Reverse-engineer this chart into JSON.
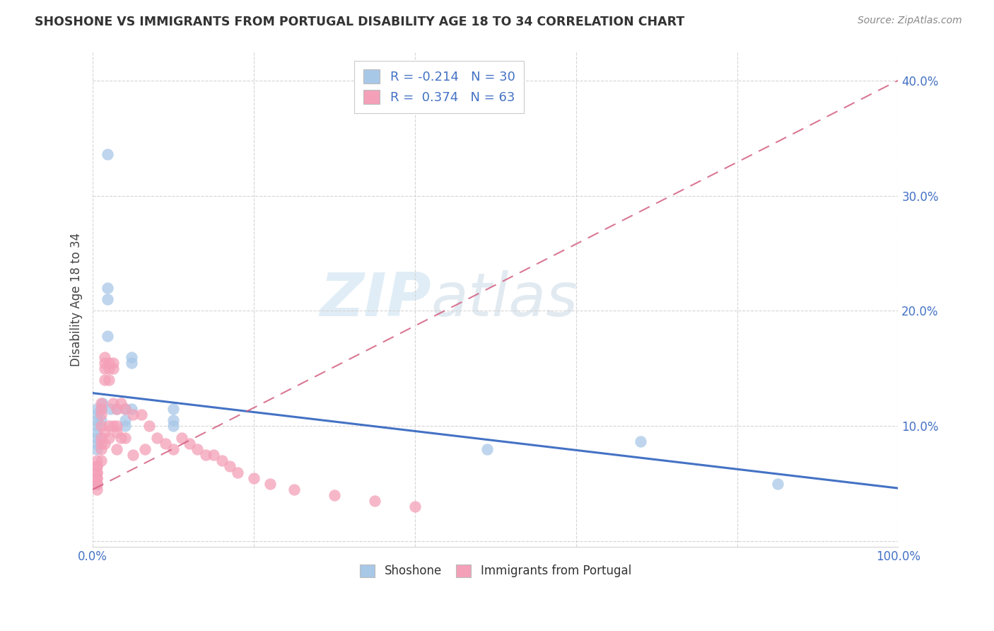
{
  "title": "SHOSHONE VS IMMIGRANTS FROM PORTUGAL DISABILITY AGE 18 TO 34 CORRELATION CHART",
  "source": "Source: ZipAtlas.com",
  "ylabel": "Disability Age 18 to 34",
  "xlim": [
    0.0,
    1.0
  ],
  "ylim": [
    -0.005,
    0.425
  ],
  "R1": -0.214,
  "N1": 30,
  "R2": 0.374,
  "N2": 63,
  "color1": "#a8c8e8",
  "color2": "#f4a0b8",
  "line_color1": "#4472c4",
  "line_color2": "#d46080",
  "legend_label1": "Shoshone",
  "legend_label2": "Immigrants from Portugal",
  "watermark_zip": "ZIP",
  "watermark_atlas": "atlas",
  "shoshone_x": [
    0.018,
    0.018,
    0.018,
    0.018,
    0.022,
    0.01,
    0.01,
    0.005,
    0.005,
    0.005,
    0.005,
    0.005,
    0.005,
    0.005,
    0.005,
    0.005,
    0.03,
    0.04,
    0.04,
    0.04,
    0.048,
    0.048,
    0.048,
    0.1,
    0.1,
    0.1,
    0.49,
    0.68,
    0.85,
    0.012
  ],
  "shoshone_y": [
    0.336,
    0.22,
    0.21,
    0.178,
    0.115,
    0.115,
    0.105,
    0.115,
    0.11,
    0.105,
    0.1,
    0.095,
    0.09,
    0.085,
    0.08,
    0.05,
    0.115,
    0.115,
    0.105,
    0.1,
    0.16,
    0.155,
    0.115,
    0.115,
    0.105,
    0.1,
    0.08,
    0.087,
    0.05,
    0.12
  ],
  "portugal_x": [
    0.005,
    0.005,
    0.005,
    0.005,
    0.005,
    0.005,
    0.005,
    0.005,
    0.005,
    0.005,
    0.01,
    0.01,
    0.01,
    0.01,
    0.01,
    0.01,
    0.01,
    0.01,
    0.015,
    0.015,
    0.015,
    0.015,
    0.015,
    0.015,
    0.02,
    0.02,
    0.02,
    0.02,
    0.02,
    0.025,
    0.025,
    0.025,
    0.025,
    0.03,
    0.03,
    0.03,
    0.03,
    0.035,
    0.035,
    0.04,
    0.04,
    0.05,
    0.05,
    0.06,
    0.065,
    0.07,
    0.08,
    0.09,
    0.1,
    0.11,
    0.12,
    0.13,
    0.14,
    0.15,
    0.16,
    0.17,
    0.18,
    0.2,
    0.22,
    0.25,
    0.3,
    0.35,
    0.4
  ],
  "portugal_y": [
    0.07,
    0.065,
    0.065,
    0.06,
    0.06,
    0.055,
    0.055,
    0.05,
    0.05,
    0.045,
    0.12,
    0.115,
    0.11,
    0.1,
    0.09,
    0.085,
    0.08,
    0.07,
    0.16,
    0.155,
    0.15,
    0.14,
    0.095,
    0.085,
    0.155,
    0.15,
    0.14,
    0.1,
    0.09,
    0.155,
    0.15,
    0.12,
    0.1,
    0.115,
    0.1,
    0.095,
    0.08,
    0.12,
    0.09,
    0.115,
    0.09,
    0.11,
    0.075,
    0.11,
    0.08,
    0.1,
    0.09,
    0.085,
    0.08,
    0.09,
    0.085,
    0.08,
    0.075,
    0.075,
    0.07,
    0.065,
    0.06,
    0.055,
    0.05,
    0.045,
    0.04,
    0.035,
    0.03
  ]
}
